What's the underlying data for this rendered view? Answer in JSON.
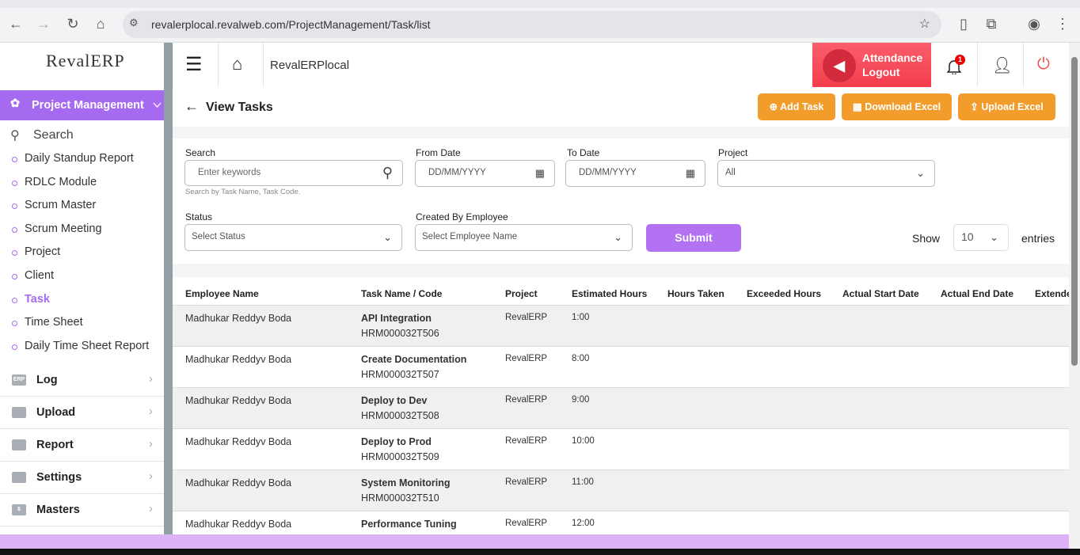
{
  "browser": {
    "url": "revalerplocal.revalweb.com/ProjectManagement/Task/list"
  },
  "sidebar": {
    "logo": "RevalERP",
    "module": "Project Management",
    "search": "Search",
    "items": [
      "Daily Standup Report",
      "RDLC Module",
      "Scrum Master",
      "Scrum Meeting",
      "Project",
      "Client",
      "Task",
      "Time Sheet",
      "Daily Time Sheet Report"
    ],
    "active_item": "Task",
    "groups": [
      {
        "label": "Log",
        "icon": "ERP"
      },
      {
        "label": "Upload",
        "icon": ""
      },
      {
        "label": "Report",
        "icon": ""
      },
      {
        "label": "Settings",
        "icon": ""
      },
      {
        "label": "Masters",
        "icon": "$"
      }
    ]
  },
  "header": {
    "title": "RevalERPlocal",
    "attendance_line1": "Attendance",
    "attendance_line2": "Logout",
    "notification_count": "1"
  },
  "page": {
    "title": "View Tasks",
    "add_task": "Add Task",
    "download_excel": "Download Excel",
    "upload_excel": "Upload Excel"
  },
  "filters": {
    "search_label": "Search",
    "search_placeholder": "Enter keywords",
    "search_hint": "Search by Task Name, Task Code.",
    "from_label": "From Date",
    "from_placeholder": "DD/MM/YYYY",
    "to_label": "To Date",
    "to_placeholder": "DD/MM/YYYY",
    "project_label": "Project",
    "project_value": "All",
    "status_label": "Status",
    "status_value": "Select Status",
    "employee_label": "Created By Employee",
    "employee_value": "Select Employee Name",
    "submit": "Submit",
    "show": "Show",
    "entries_value": "10",
    "entries": "entries"
  },
  "table": {
    "columns": [
      "Employee Name",
      "Task Name / Code",
      "Project",
      "Estimated Hours",
      "Hours Taken",
      "Exceeded Hours",
      "Actual Start Date",
      "Actual End Date",
      "Extended"
    ],
    "rows": [
      {
        "employee": "Madhukar Reddyv Boda",
        "task": "API Integration",
        "code": "HRM000032T506",
        "project": "RevalERP",
        "est": "1:00"
      },
      {
        "employee": "Madhukar Reddyv Boda",
        "task": "Create Documentation",
        "code": "HRM000032T507",
        "project": "RevalERP",
        "est": "8:00"
      },
      {
        "employee": "Madhukar Reddyv Boda",
        "task": "Deploy to Dev",
        "code": "HRM000032T508",
        "project": "RevalERP",
        "est": "9:00"
      },
      {
        "employee": "Madhukar Reddyv Boda",
        "task": "Deploy to Prod",
        "code": "HRM000032T509",
        "project": "RevalERP",
        "est": "10:00"
      },
      {
        "employee": "Madhukar Reddyv Boda",
        "task": "System Monitoring",
        "code": "HRM000032T510",
        "project": "RevalERP",
        "est": "11:00"
      },
      {
        "employee": "Madhukar Reddyv Boda",
        "task": "Performance Tuning",
        "code": "",
        "project": "RevalERP",
        "est": "12:00"
      }
    ]
  },
  "colors": {
    "accent": "#a66af0",
    "orange": "#f29c2c",
    "attendance": "#f43d4c"
  }
}
